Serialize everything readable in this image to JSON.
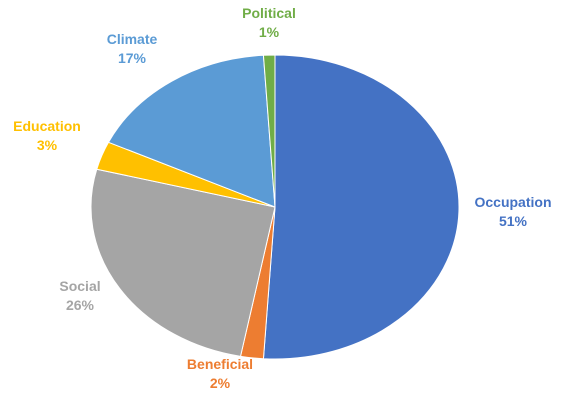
{
  "chart_data": {
    "type": "pie",
    "title": "",
    "legend": "none",
    "slices": [
      {
        "label": "Occupation",
        "value": 51,
        "display": "51%",
        "color": "#4472C4"
      },
      {
        "label": "Beneficial",
        "value": 2,
        "display": "2%",
        "color": "#ED7D31"
      },
      {
        "label": "Social",
        "value": 26,
        "display": "26%",
        "color": "#A5A5A5"
      },
      {
        "label": "Education",
        "value": 3,
        "display": "3%",
        "color": "#FFC000"
      },
      {
        "label": "Climate",
        "value": 17,
        "display": "17%",
        "color": "#5B9BD5"
      },
      {
        "label": "Political",
        "value": 1,
        "display": "1%",
        "color": "#70AD47"
      }
    ]
  }
}
